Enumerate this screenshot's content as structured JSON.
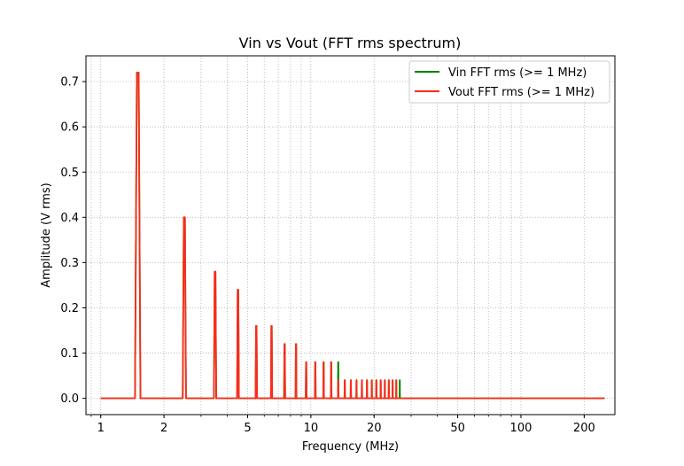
{
  "chart_data": {
    "type": "line",
    "title": "Vin vs Vout (FFT rms spectrum)",
    "xlabel": "Frequency (MHz)",
    "ylabel": "Amplitude (V rms)",
    "x_scale": "log",
    "xlim": [
      0.85,
      280
    ],
    "ylim": [
      -0.036,
      0.757
    ],
    "x_ticks": [
      1,
      2,
      5,
      10,
      20,
      50,
      100,
      200
    ],
    "x_tick_labels": [
      "1",
      "2",
      "5",
      "10",
      "20",
      "50",
      "100",
      "200"
    ],
    "y_ticks": [
      0.0,
      0.1,
      0.2,
      0.3,
      0.4,
      0.5,
      0.6,
      0.7
    ],
    "y_tick_labels": [
      "0.0",
      "0.1",
      "0.2",
      "0.3",
      "0.4",
      "0.5",
      "0.6",
      "0.7"
    ],
    "grid": true,
    "legend_position": "top-right",
    "x_range": [
      1,
      250
    ],
    "series": [
      {
        "name": "Vin FFT rms (>= 1 MHz)",
        "color": "#008000",
        "peaks": [
          {
            "x": 1.5,
            "y": 0.72
          },
          {
            "x": 2.5,
            "y": 0.4
          },
          {
            "x": 3.5,
            "y": 0.28
          },
          {
            "x": 4.5,
            "y": 0.24
          },
          {
            "x": 5.5,
            "y": 0.16
          },
          {
            "x": 6.5,
            "y": 0.16
          },
          {
            "x": 7.5,
            "y": 0.12
          },
          {
            "x": 8.5,
            "y": 0.12
          },
          {
            "x": 9.5,
            "y": 0.08
          },
          {
            "x": 10.5,
            "y": 0.08
          },
          {
            "x": 11.5,
            "y": 0.08
          },
          {
            "x": 12.5,
            "y": 0.08
          },
          {
            "x": 13.5,
            "y": 0.08
          },
          {
            "x": 14.5,
            "y": 0.04
          },
          {
            "x": 15.5,
            "y": 0.04
          },
          {
            "x": 16.5,
            "y": 0.04
          },
          {
            "x": 17.5,
            "y": 0.04
          },
          {
            "x": 18.5,
            "y": 0.04
          },
          {
            "x": 19.5,
            "y": 0.04
          },
          {
            "x": 20.5,
            "y": 0.04
          },
          {
            "x": 21.5,
            "y": 0.04
          },
          {
            "x": 22.5,
            "y": 0.04
          },
          {
            "x": 23.5,
            "y": 0.04
          },
          {
            "x": 24.5,
            "y": 0.04
          },
          {
            "x": 25.5,
            "y": 0.04
          },
          {
            "x": 26.5,
            "y": 0.04
          }
        ]
      },
      {
        "name": "Vout FFT rms (>= 1 MHz)",
        "color": "#ff2a1a",
        "peaks": [
          {
            "x": 1.5,
            "y": 0.72
          },
          {
            "x": 2.5,
            "y": 0.4
          },
          {
            "x": 3.5,
            "y": 0.28
          },
          {
            "x": 4.5,
            "y": 0.24
          },
          {
            "x": 5.5,
            "y": 0.16
          },
          {
            "x": 6.5,
            "y": 0.16
          },
          {
            "x": 7.5,
            "y": 0.12
          },
          {
            "x": 8.5,
            "y": 0.12
          },
          {
            "x": 9.5,
            "y": 0.08
          },
          {
            "x": 10.5,
            "y": 0.08
          },
          {
            "x": 11.5,
            "y": 0.08
          },
          {
            "x": 12.5,
            "y": 0.08
          },
          {
            "x": 13.5,
            "y": 0.04
          },
          {
            "x": 14.5,
            "y": 0.04
          },
          {
            "x": 15.5,
            "y": 0.04
          },
          {
            "x": 16.5,
            "y": 0.04
          },
          {
            "x": 17.5,
            "y": 0.04
          },
          {
            "x": 18.5,
            "y": 0.04
          },
          {
            "x": 19.5,
            "y": 0.04
          },
          {
            "x": 20.5,
            "y": 0.04
          },
          {
            "x": 21.5,
            "y": 0.04
          },
          {
            "x": 22.5,
            "y": 0.04
          },
          {
            "x": 23.5,
            "y": 0.04
          },
          {
            "x": 24.5,
            "y": 0.04
          },
          {
            "x": 25.5,
            "y": 0.04
          }
        ]
      }
    ]
  }
}
